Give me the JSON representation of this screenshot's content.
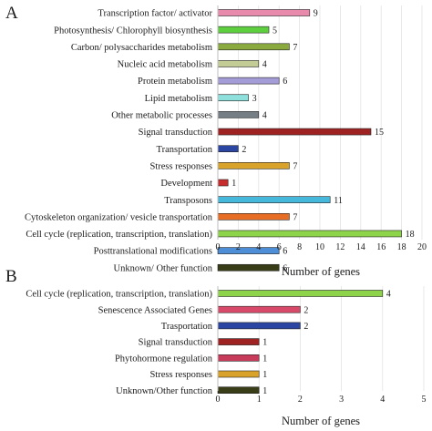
{
  "chart_data": [
    {
      "type": "bar",
      "orientation": "horizontal",
      "panel": "A",
      "xlabel": "Number of genes",
      "xlim": [
        0,
        20
      ],
      "xticks": [
        0,
        2,
        4,
        6,
        8,
        10,
        12,
        14,
        16,
        18,
        20
      ],
      "grid": true,
      "categories": [
        "Transcription factor/ activator",
        "Photosynthesis/ Chlorophyll biosynthesis",
        "Carbon/ polysaccharides metabolism",
        "Nucleic acid metabolism",
        "Protein metabolism",
        "Lipid metabolism",
        "Other metabolic processes",
        "Signal transduction",
        "Transportation",
        "Stress responses",
        "Development",
        "Transposons",
        "Cytoskeleton organization/ vesicle transportation",
        "Cell cycle (replication, transcription, translation)",
        "Posttranslational modifications",
        "Unknown/ Other function"
      ],
      "values": [
        9,
        5,
        7,
        4,
        6,
        3,
        4,
        15,
        2,
        7,
        1,
        11,
        7,
        18,
        6,
        6
      ],
      "colors": [
        "#e88aac",
        "#5ecf3e",
        "#8aaa3f",
        "#c2cc94",
        "#a49cd6",
        "#8ee0dc",
        "#757e84",
        "#9e2222",
        "#2b45a2",
        "#d9a22a",
        "#c72d2d",
        "#45b8dc",
        "#e86d24",
        "#8ed44a",
        "#4e8ed6",
        "#3a3e18"
      ]
    },
    {
      "type": "bar",
      "orientation": "horizontal",
      "panel": "B",
      "xlabel": "Number of genes",
      "xlim": [
        0,
        5
      ],
      "xticks": [
        0,
        1,
        2,
        3,
        4,
        5
      ],
      "grid": true,
      "categories": [
        "Cell cycle (replication, transcription, translation)",
        "Senescence Associated Genes",
        "Trasportation",
        "Signal transduction",
        "Phytohormone regulation",
        "Stress responses",
        "Unknown/Other function"
      ],
      "values": [
        4,
        2,
        2,
        1,
        1,
        1,
        1
      ],
      "colors": [
        "#8ed44a",
        "#d94a6a",
        "#2b45a2",
        "#9e2222",
        "#c73a5a",
        "#d9a22a",
        "#3a3e18"
      ]
    }
  ]
}
